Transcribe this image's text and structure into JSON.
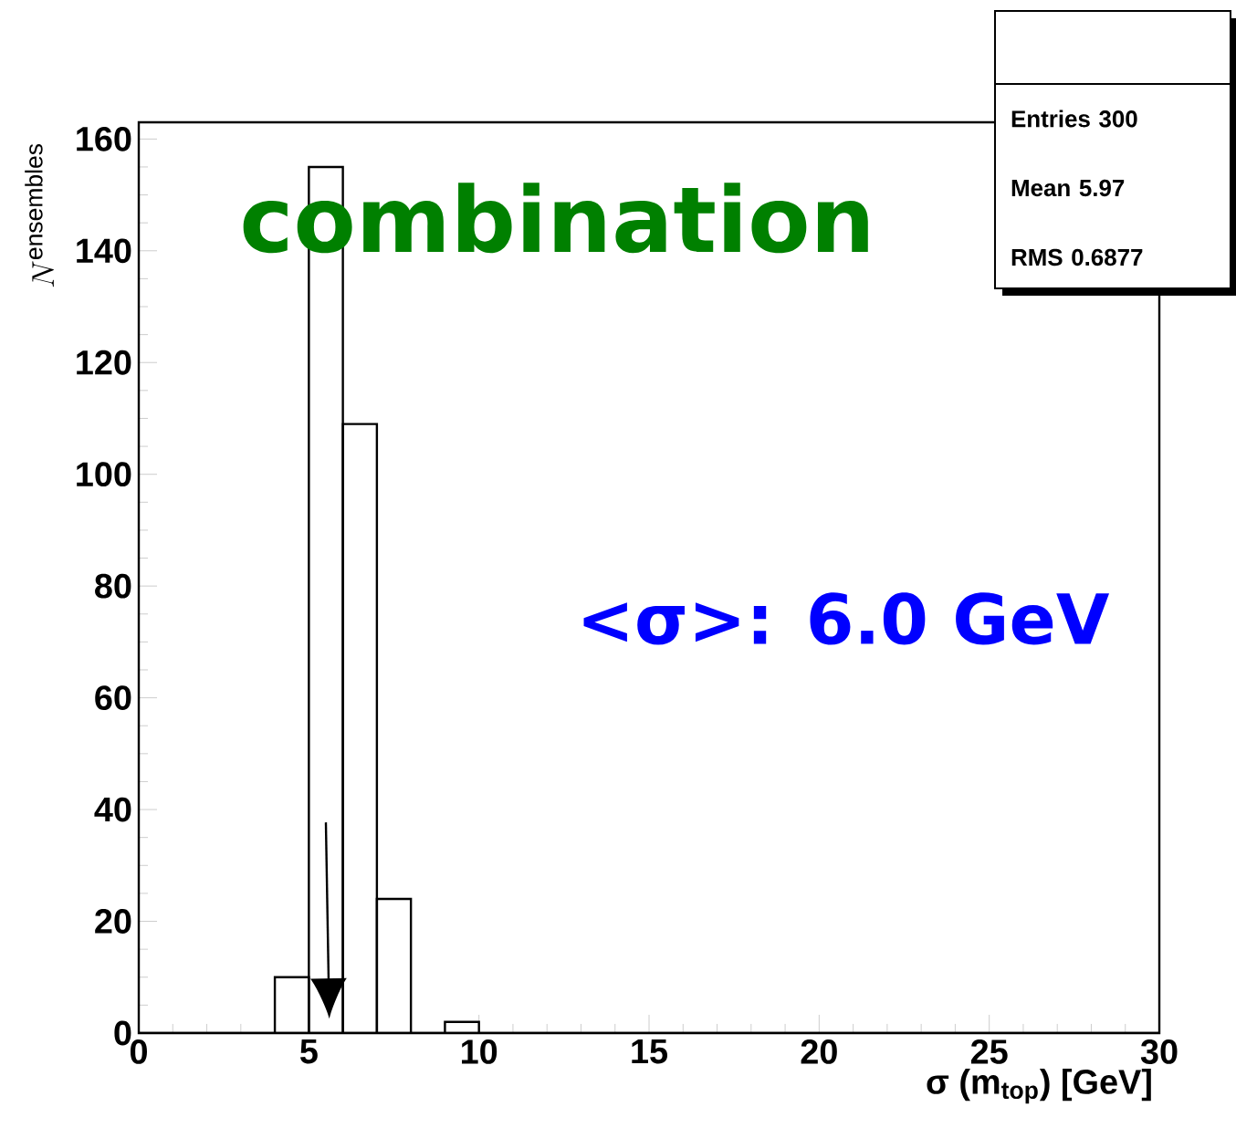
{
  "chart_data": {
    "type": "histogram",
    "xlabel": "σ (m$_{top}$) [GeV]",
    "ylabel": "N^{\\mathrm{ensembles}}",
    "bins": [
      0,
      1,
      2,
      3,
      4,
      5,
      6,
      7,
      8,
      9,
      10,
      11,
      12,
      13,
      14,
      15,
      16,
      17,
      18,
      19,
      20,
      21,
      22,
      23,
      24,
      25,
      26,
      27,
      28,
      29,
      30
    ],
    "values": [
      0,
      0,
      0,
      0,
      10,
      155,
      109,
      24,
      0,
      2,
      0,
      0,
      0,
      0,
      0,
      0,
      0,
      0,
      0,
      0,
      0,
      0,
      0,
      0,
      0,
      0,
      0,
      0,
      0,
      0
    ],
    "color": "#000000",
    "xlim": [
      0,
      30
    ],
    "ylim": [
      0,
      163
    ],
    "xticks": [
      0,
      5,
      10,
      15,
      20,
      25,
      30
    ],
    "yticks": [
      0,
      20,
      40,
      60,
      80,
      100,
      120,
      140,
      160
    ],
    "grid": false,
    "annotations": [
      "combination",
      "<σ>: 6.0 GeV",
      "Entries 300",
      "Mean 5.97",
      "RMS 0.6877"
    ]
  }
}
